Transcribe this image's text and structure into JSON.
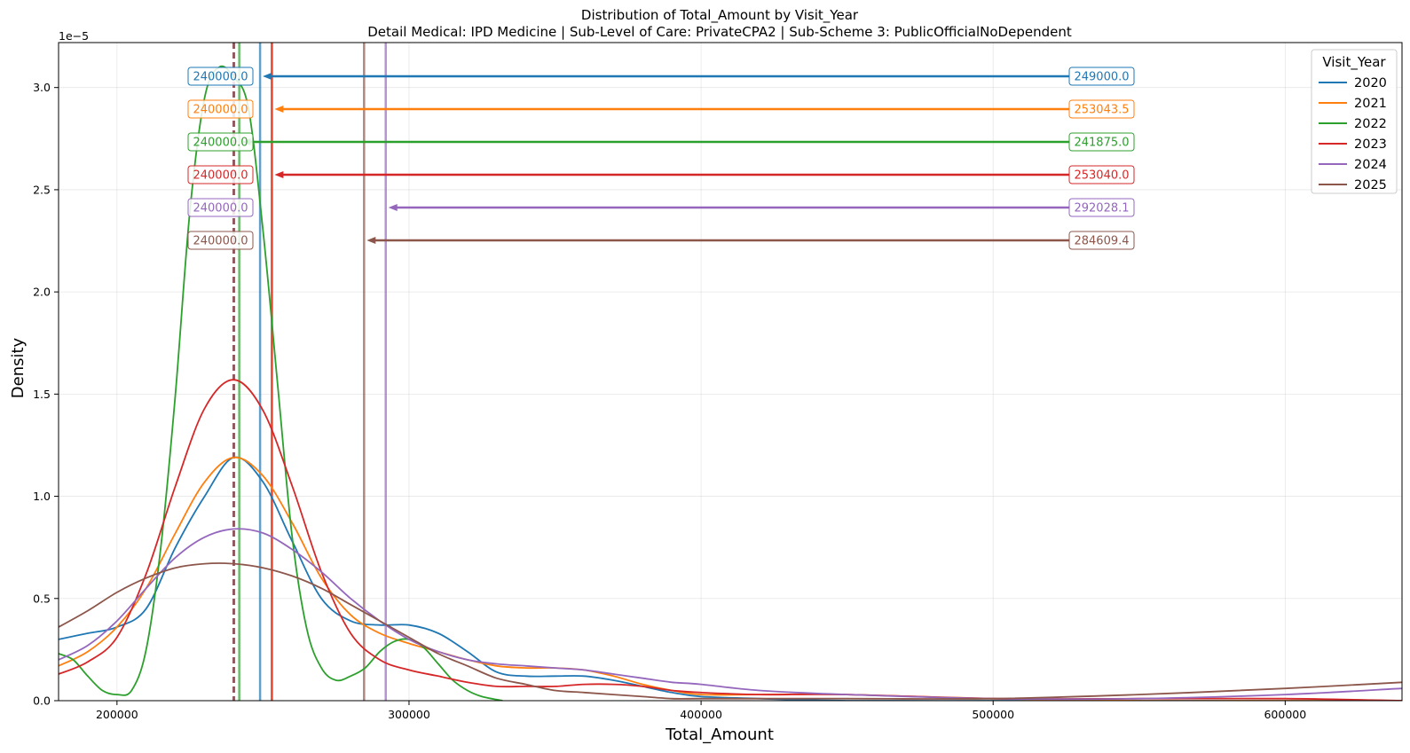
{
  "chart_data": {
    "type": "line",
    "title": "Distribution of Total_Amount by Visit_Year",
    "subtitle": "Detail Medical: IPD Medicine | Sub-Level of Care: PrivateCPA2 | Sub-Scheme 3: PublicOfficialNoDependent",
    "xlabel": "Total_Amount",
    "ylabel": "Density",
    "y_offset_label": "1e−5",
    "xlim": [
      180000,
      640000
    ],
    "ylim": [
      0,
      3.22
    ],
    "xticks": [
      200000,
      300000,
      400000,
      500000,
      600000
    ],
    "xtick_labels": [
      "200000",
      "300000",
      "400000",
      "500000",
      "600000"
    ],
    "yticks": [
      0.0,
      0.5,
      1.0,
      1.5,
      2.0,
      2.5,
      3.0
    ],
    "ytick_labels": [
      "0.0",
      "0.5",
      "1.0",
      "1.5",
      "2.0",
      "2.5",
      "3.0"
    ],
    "grid": true,
    "legend": {
      "title": "Visit_Year",
      "placement": "top-right"
    },
    "series": [
      {
        "name": "2020",
        "color": "#1f77b4",
        "median": 240000,
        "mean": 249000,
        "median_label": "240000.0",
        "mean_label": "249000.0",
        "x": [
          180000,
          190000,
          200000,
          210000,
          220000,
          230000,
          240000,
          250000,
          260000,
          270000,
          280000,
          290000,
          300000,
          310000,
          320000,
          330000,
          340000,
          350000,
          360000,
          370000,
          380000,
          390000,
          400000,
          420000,
          450000,
          500000,
          550000,
          600000,
          640000
        ],
        "y": [
          0.3,
          0.33,
          0.36,
          0.45,
          0.75,
          1.0,
          1.19,
          1.07,
          0.78,
          0.5,
          0.39,
          0.37,
          0.37,
          0.33,
          0.24,
          0.14,
          0.12,
          0.12,
          0.12,
          0.1,
          0.07,
          0.04,
          0.02,
          0.01,
          0.0,
          0.0,
          0.0,
          0.0,
          0.0
        ]
      },
      {
        "name": "2021",
        "color": "#ff7f0e",
        "median": 240000,
        "mean": 253043.5,
        "median_label": "240000.0",
        "mean_label": "253043.5",
        "x": [
          180000,
          190000,
          200000,
          210000,
          220000,
          230000,
          240000,
          250000,
          260000,
          270000,
          280000,
          290000,
          300000,
          310000,
          320000,
          330000,
          340000,
          350000,
          360000,
          370000,
          380000,
          390000,
          400000,
          420000,
          450000,
          500000,
          550000,
          600000,
          640000
        ],
        "y": [
          0.17,
          0.24,
          0.36,
          0.55,
          0.82,
          1.07,
          1.19,
          1.1,
          0.87,
          0.6,
          0.42,
          0.33,
          0.28,
          0.24,
          0.2,
          0.17,
          0.16,
          0.16,
          0.15,
          0.12,
          0.08,
          0.05,
          0.03,
          0.03,
          0.03,
          0.01,
          0.0,
          0.0,
          0.0
        ]
      },
      {
        "name": "2022",
        "color": "#2ca02c",
        "median": 240000,
        "mean": 241875,
        "median_label": "240000.0",
        "mean_label": "241875.0",
        "x": [
          180000,
          185000,
          190000,
          195000,
          200000,
          205000,
          210000,
          215000,
          220000,
          225000,
          230000,
          235000,
          240000,
          245000,
          250000,
          255000,
          260000,
          265000,
          270000,
          275000,
          280000,
          285000,
          290000,
          295000,
          300000,
          305000,
          310000,
          315000,
          320000,
          325000,
          332000
        ],
        "y": [
          0.23,
          0.2,
          0.12,
          0.05,
          0.03,
          0.05,
          0.25,
          0.75,
          1.5,
          2.4,
          2.95,
          3.1,
          3.05,
          2.9,
          2.3,
          1.55,
          0.8,
          0.35,
          0.16,
          0.1,
          0.12,
          0.16,
          0.24,
          0.29,
          0.3,
          0.26,
          0.18,
          0.1,
          0.05,
          0.02,
          0.0
        ]
      },
      {
        "name": "2023",
        "color": "#d62728",
        "median": 240000,
        "mean": 253040,
        "median_label": "240000.0",
        "mean_label": "253040.0",
        "x": [
          180000,
          190000,
          200000,
          210000,
          220000,
          230000,
          240000,
          250000,
          260000,
          270000,
          280000,
          290000,
          300000,
          310000,
          320000,
          330000,
          340000,
          350000,
          360000,
          370000,
          380000,
          390000,
          400000,
          420000,
          450000,
          500000,
          550000,
          600000,
          640000
        ],
        "y": [
          0.13,
          0.19,
          0.31,
          0.62,
          1.05,
          1.43,
          1.57,
          1.42,
          1.05,
          0.63,
          0.33,
          0.2,
          0.15,
          0.12,
          0.09,
          0.07,
          0.07,
          0.07,
          0.08,
          0.08,
          0.07,
          0.05,
          0.04,
          0.03,
          0.03,
          0.01,
          0.01,
          0.01,
          0.0
        ]
      },
      {
        "name": "2024",
        "color": "#9467bd",
        "median": 240000,
        "mean": 292028.1,
        "median_label": "240000.0",
        "mean_label": "292028.1",
        "x": [
          180000,
          190000,
          200000,
          210000,
          220000,
          230000,
          240000,
          250000,
          260000,
          270000,
          280000,
          290000,
          300000,
          310000,
          320000,
          330000,
          340000,
          350000,
          360000,
          370000,
          380000,
          390000,
          400000,
          420000,
          450000,
          500000,
          550000,
          600000,
          640000
        ],
        "y": [
          0.2,
          0.27,
          0.39,
          0.55,
          0.7,
          0.8,
          0.84,
          0.82,
          0.74,
          0.63,
          0.5,
          0.39,
          0.3,
          0.24,
          0.2,
          0.18,
          0.17,
          0.16,
          0.15,
          0.13,
          0.11,
          0.09,
          0.08,
          0.05,
          0.03,
          0.01,
          0.01,
          0.03,
          0.06
        ]
      },
      {
        "name": "2025",
        "color": "#8c564b",
        "median": 240000,
        "mean": 284609.4,
        "median_label": "240000.0",
        "mean_label": "284609.4",
        "x": [
          180000,
          190000,
          200000,
          210000,
          220000,
          230000,
          240000,
          250000,
          260000,
          270000,
          280000,
          290000,
          300000,
          310000,
          320000,
          330000,
          340000,
          350000,
          360000,
          370000,
          380000,
          390000,
          400000,
          420000,
          450000,
          500000,
          550000,
          600000,
          640000
        ],
        "y": [
          0.36,
          0.44,
          0.53,
          0.6,
          0.65,
          0.67,
          0.67,
          0.65,
          0.61,
          0.55,
          0.47,
          0.39,
          0.31,
          0.23,
          0.17,
          0.11,
          0.08,
          0.05,
          0.04,
          0.03,
          0.02,
          0.01,
          0.01,
          0.01,
          0.01,
          0.01,
          0.03,
          0.06,
          0.09
        ]
      }
    ]
  }
}
